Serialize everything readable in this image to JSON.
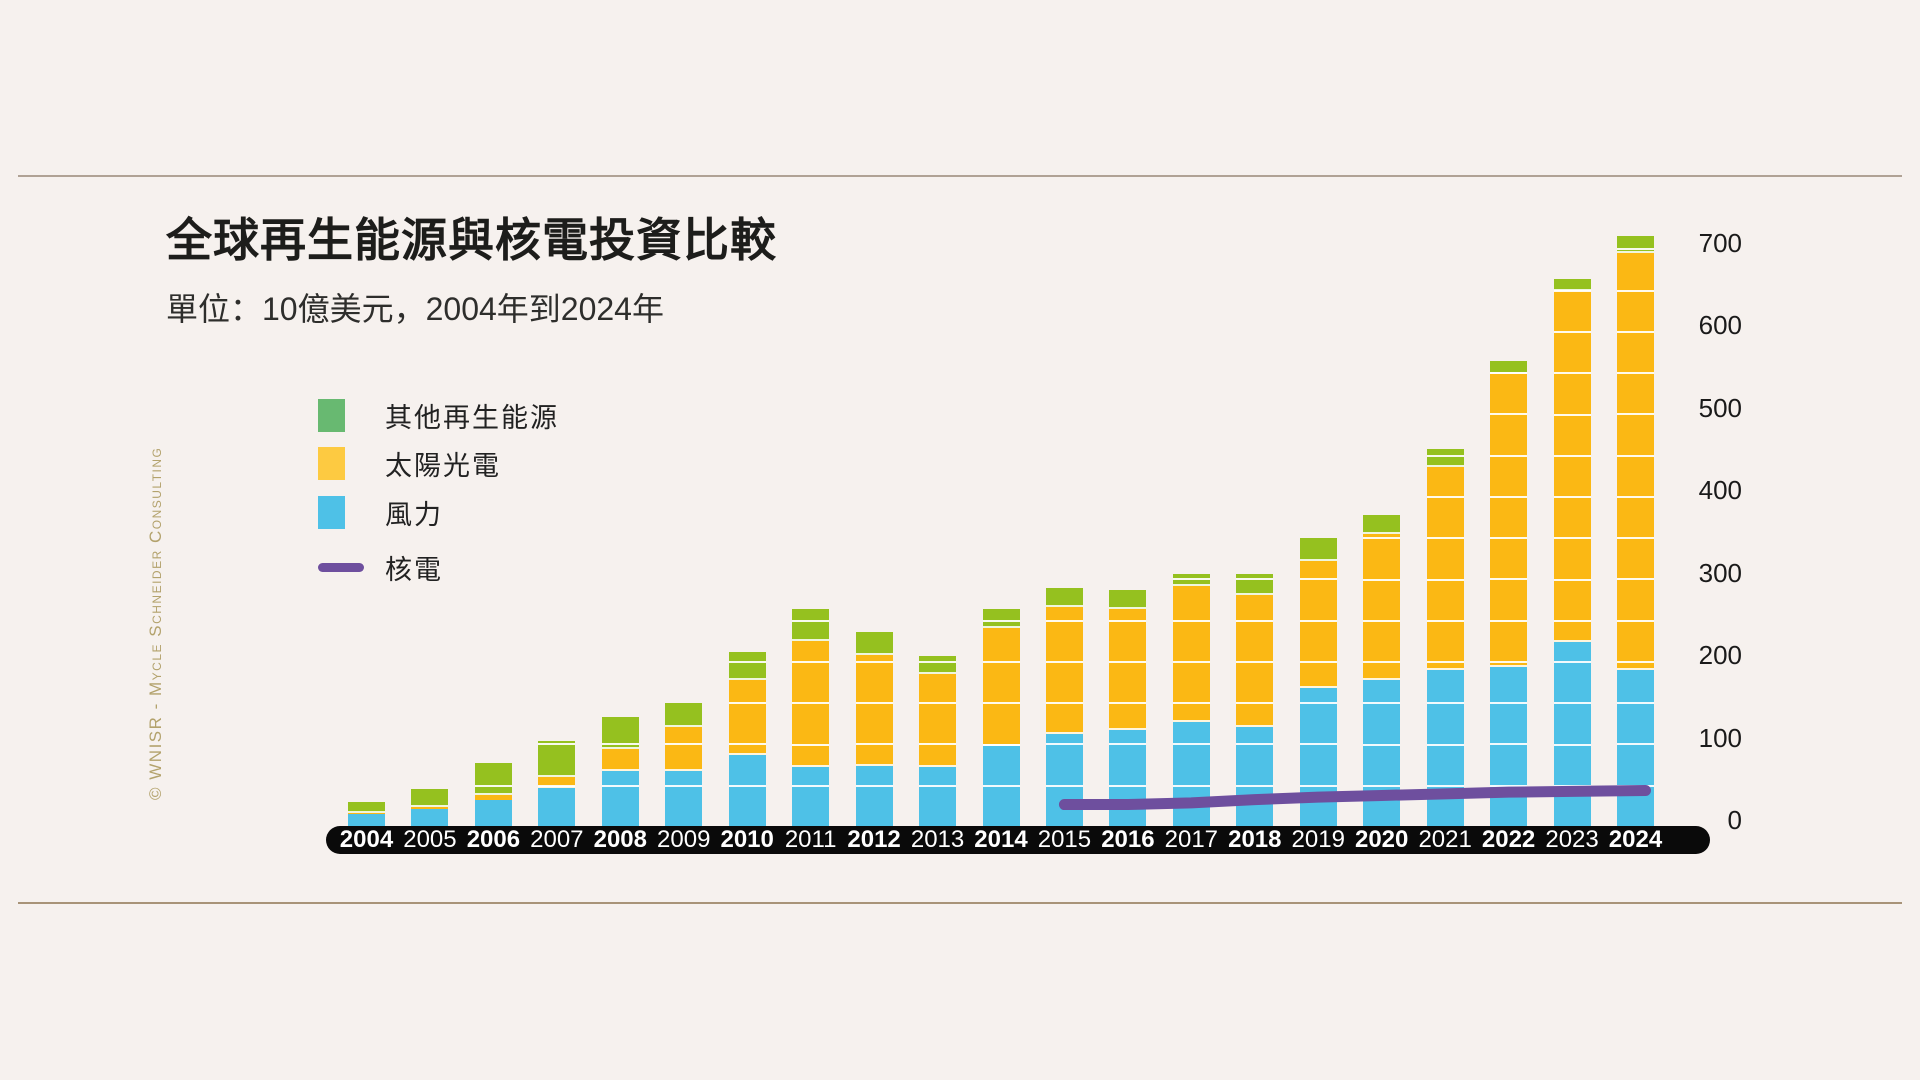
{
  "title": "全球再生能源與核電投資比較",
  "subtitle": "單位：10億美元，2004年到2024年",
  "copyright": "© WNISR - Mycle Schneider Consulting",
  "colors": {
    "background": "#f6f1ee",
    "rule_top": "#b0a295",
    "rule_bottom": "#a89378",
    "wind": "#4ec1e7",
    "solar": "#fbb814",
    "other": "#95c11f",
    "nuclear": "#6e4f9e",
    "legend_other": "#68b971",
    "legend_solar": "#fdca41",
    "legend_wind": "#4ec1e7",
    "axis_strip": "#0a0a0a",
    "x_label": "#ffffff",
    "copyright_text": "#b3a26c"
  },
  "legend": {
    "items": [
      {
        "label": "其他再生能源",
        "color": "#68b971",
        "type": "square"
      },
      {
        "label": "太陽光電",
        "color": "#fdca41",
        "type": "square"
      },
      {
        "label": "風力",
        "color": "#4ec1e7",
        "type": "square"
      },
      {
        "label": "核電",
        "color": "#6e4f9e",
        "type": "line"
      }
    ]
  },
  "chart_data": {
    "type": "bar",
    "subtype": "stacked-bars-with-line",
    "categories": [
      2004,
      2005,
      2006,
      2007,
      2008,
      2009,
      2010,
      2011,
      2012,
      2013,
      2014,
      2015,
      2016,
      2017,
      2018,
      2019,
      2020,
      2021,
      2022,
      2023,
      2024
    ],
    "series": [
      {
        "name": "風力",
        "role": "bar-bottom",
        "color": "#4ec1e7",
        "values": [
          17,
          23,
          34,
          48,
          69,
          69,
          88,
          74,
          75,
          74,
          100,
          114,
          119,
          128,
          123,
          170,
          180,
          192,
          195,
          225,
          192
        ]
      },
      {
        "name": "太陽光電",
        "role": "bar-middle",
        "color": "#fbb814",
        "values": [
          1,
          2,
          6,
          14,
          27,
          53,
          91,
          153,
          135,
          113,
          142,
          154,
          146,
          165,
          160,
          154,
          176,
          245,
          355,
          426,
          505
        ]
      },
      {
        "name": "其他再生能源",
        "role": "bar-top",
        "color": "#95c11f",
        "values": [
          14,
          22,
          39,
          44,
          38,
          29,
          34,
          38,
          28,
          22,
          23,
          23,
          24,
          15,
          25,
          28,
          24,
          23,
          16,
          14,
          21
        ]
      },
      {
        "name": "核電",
        "role": "line",
        "color": "#6e4f9e",
        "start_year": 2015,
        "values": [
          26,
          26,
          28,
          32,
          35,
          37,
          39,
          41,
          42,
          43
        ]
      }
    ],
    "totals": [
      32,
      47,
      79,
      106,
      134,
      151,
      213,
      265,
      238,
      209,
      265,
      291,
      289,
      308,
      308,
      352,
      380,
      460,
      566,
      665,
      718
    ],
    "ylim": [
      0,
      700
    ],
    "ytick_labels": [
      "0",
      "100",
      "200",
      "300",
      "400",
      "500",
      "600",
      "700"
    ],
    "gridline_step": 50,
    "grid_on_bars_only": true,
    "legend_position": "upper-left",
    "x_bold_years": "even",
    "title": "全球再生能源與核電投資比較",
    "xlabel": "",
    "ylabel": "10億美元"
  }
}
